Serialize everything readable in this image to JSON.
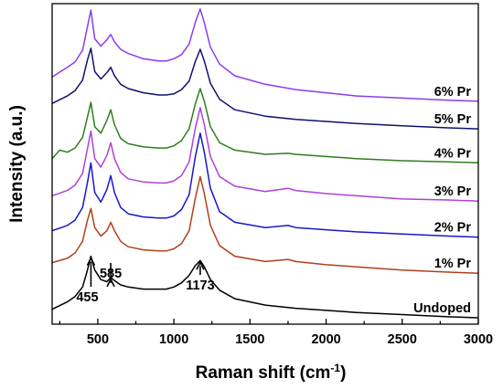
{
  "chart_data": {
    "type": "line",
    "xlabel": "Raman shift (cm",
    "xlabel_sup": "-1",
    "xlabel_end": ")",
    "ylabel": "Intensity (a.u.)",
    "xlim": [
      200,
      3000
    ],
    "x_ticks": [
      500,
      1000,
      1500,
      2000,
      2500,
      3000
    ],
    "y_ticks": [],
    "grid": false,
    "legend": "none",
    "stacked_offset": true,
    "peaks": [
      {
        "label": "455",
        "x": 455
      },
      {
        "label": "585",
        "x": 585
      },
      {
        "label": "1173",
        "x": 1173
      }
    ],
    "series": [
      {
        "name": "Undoped",
        "color": "#000000",
        "offset": 0.0,
        "x": [
          200,
          300,
          350,
          400,
          430,
          455,
          480,
          520,
          560,
          585,
          610,
          650,
          700,
          800,
          900,
          950,
          1000,
          1050,
          1100,
          1140,
          1173,
          1200,
          1240,
          1300,
          1400,
          1600,
          1800,
          2000,
          2200,
          2500,
          2800,
          3000
        ],
        "y": [
          0.1,
          0.17,
          0.22,
          0.31,
          0.46,
          0.6,
          0.47,
          0.38,
          0.36,
          0.4,
          0.37,
          0.33,
          0.31,
          0.29,
          0.29,
          0.29,
          0.31,
          0.35,
          0.42,
          0.51,
          0.56,
          0.5,
          0.38,
          0.28,
          0.2,
          0.14,
          0.11,
          0.09,
          0.07,
          0.05,
          0.03,
          0.02
        ]
      },
      {
        "name": "1% Pr",
        "color": "#b0401a",
        "offset": 0.44,
        "x": [
          200,
          300,
          350,
          400,
          430,
          455,
          480,
          520,
          560,
          585,
          610,
          650,
          700,
          800,
          900,
          950,
          1000,
          1050,
          1100,
          1140,
          1173,
          1200,
          1240,
          1300,
          1400,
          1600,
          1750,
          1800,
          2000,
          2200,
          2500,
          2800,
          3000
        ],
        "y": [
          0.1,
          0.14,
          0.19,
          0.3,
          0.49,
          0.61,
          0.43,
          0.35,
          0.4,
          0.48,
          0.4,
          0.3,
          0.25,
          0.22,
          0.21,
          0.21,
          0.23,
          0.28,
          0.4,
          0.7,
          0.91,
          0.75,
          0.45,
          0.26,
          0.16,
          0.11,
          0.13,
          0.11,
          0.08,
          0.06,
          0.03,
          0.01,
          0.0
        ]
      },
      {
        "name": "2% Pr",
        "color": "#1818c8",
        "offset": 0.78,
        "x": [
          200,
          300,
          350,
          400,
          430,
          455,
          480,
          520,
          560,
          585,
          610,
          650,
          700,
          800,
          900,
          950,
          1000,
          1050,
          1100,
          1140,
          1173,
          1200,
          1240,
          1300,
          1400,
          1600,
          1750,
          1800,
          2000,
          2200,
          2500,
          2800,
          3000
        ],
        "y": [
          0.06,
          0.11,
          0.16,
          0.28,
          0.5,
          0.7,
          0.42,
          0.33,
          0.45,
          0.58,
          0.42,
          0.28,
          0.22,
          0.19,
          0.18,
          0.18,
          0.2,
          0.26,
          0.4,
          0.75,
          0.98,
          0.8,
          0.46,
          0.24,
          0.14,
          0.09,
          0.11,
          0.09,
          0.07,
          0.05,
          0.03,
          0.01,
          0.0
        ]
      },
      {
        "name": "3% Pr",
        "color": "#b040d8",
        "offset": 1.12,
        "x": [
          200,
          300,
          350,
          400,
          430,
          455,
          480,
          520,
          560,
          585,
          610,
          650,
          700,
          800,
          900,
          950,
          1000,
          1050,
          1100,
          1140,
          1173,
          1200,
          1240,
          1300,
          1400,
          1600,
          1750,
          1800,
          2000,
          2200,
          2500,
          2800,
          3000
        ],
        "y": [
          0.05,
          0.1,
          0.15,
          0.26,
          0.48,
          0.66,
          0.4,
          0.32,
          0.43,
          0.55,
          0.4,
          0.27,
          0.21,
          0.18,
          0.17,
          0.17,
          0.19,
          0.24,
          0.37,
          0.68,
          0.88,
          0.72,
          0.42,
          0.23,
          0.14,
          0.09,
          0.12,
          0.1,
          0.07,
          0.05,
          0.02,
          0.01,
          0.0
        ]
      },
      {
        "name": "4% Pr",
        "color": "#2e7d1e",
        "offset": 1.48,
        "x": [
          200,
          250,
          300,
          350,
          400,
          430,
          455,
          480,
          520,
          560,
          585,
          610,
          650,
          700,
          800,
          900,
          950,
          1000,
          1050,
          1100,
          1140,
          1173,
          1200,
          1240,
          1300,
          1400,
          1600,
          1750,
          1800,
          2000,
          2200,
          2500,
          2800,
          3000
        ],
        "y": [
          0.04,
          0.12,
          0.1,
          0.14,
          0.24,
          0.42,
          0.57,
          0.34,
          0.28,
          0.4,
          0.5,
          0.36,
          0.23,
          0.18,
          0.15,
          0.14,
          0.14,
          0.16,
          0.21,
          0.32,
          0.55,
          0.7,
          0.58,
          0.34,
          0.19,
          0.12,
          0.08,
          0.09,
          0.08,
          0.06,
          0.04,
          0.02,
          0.01,
          0.0
        ]
      },
      {
        "name": "5% Pr",
        "color": "#10106e",
        "offset": 1.8,
        "x": [
          200,
          300,
          350,
          400,
          430,
          455,
          480,
          520,
          560,
          585,
          610,
          650,
          700,
          800,
          900,
          950,
          1000,
          1050,
          1100,
          1140,
          1173,
          1200,
          1240,
          1300,
          1400,
          1600,
          1800,
          2000,
          2200,
          2500,
          2800,
          3000
        ],
        "y": [
          0.24,
          0.31,
          0.36,
          0.46,
          0.64,
          0.76,
          0.54,
          0.47,
          0.53,
          0.58,
          0.5,
          0.42,
          0.38,
          0.34,
          0.32,
          0.32,
          0.33,
          0.37,
          0.45,
          0.63,
          0.75,
          0.64,
          0.43,
          0.28,
          0.18,
          0.12,
          0.09,
          0.07,
          0.05,
          0.03,
          0.01,
          0.0
        ]
      },
      {
        "name": "6% Pr",
        "color": "#8a3cf0",
        "offset": 2.05,
        "x": [
          200,
          300,
          350,
          400,
          430,
          455,
          480,
          520,
          560,
          585,
          610,
          650,
          700,
          800,
          900,
          950,
          1000,
          1050,
          1100,
          1140,
          1173,
          1200,
          1240,
          1300,
          1400,
          1600,
          1800,
          2000,
          2200,
          2500,
          2800,
          3000
        ],
        "y": [
          0.24,
          0.33,
          0.38,
          0.49,
          0.7,
          0.87,
          0.6,
          0.53,
          0.59,
          0.64,
          0.57,
          0.5,
          0.46,
          0.41,
          0.39,
          0.39,
          0.41,
          0.45,
          0.55,
          0.75,
          0.88,
          0.75,
          0.52,
          0.36,
          0.25,
          0.17,
          0.12,
          0.09,
          0.06,
          0.04,
          0.02,
          0.01
        ]
      }
    ]
  }
}
